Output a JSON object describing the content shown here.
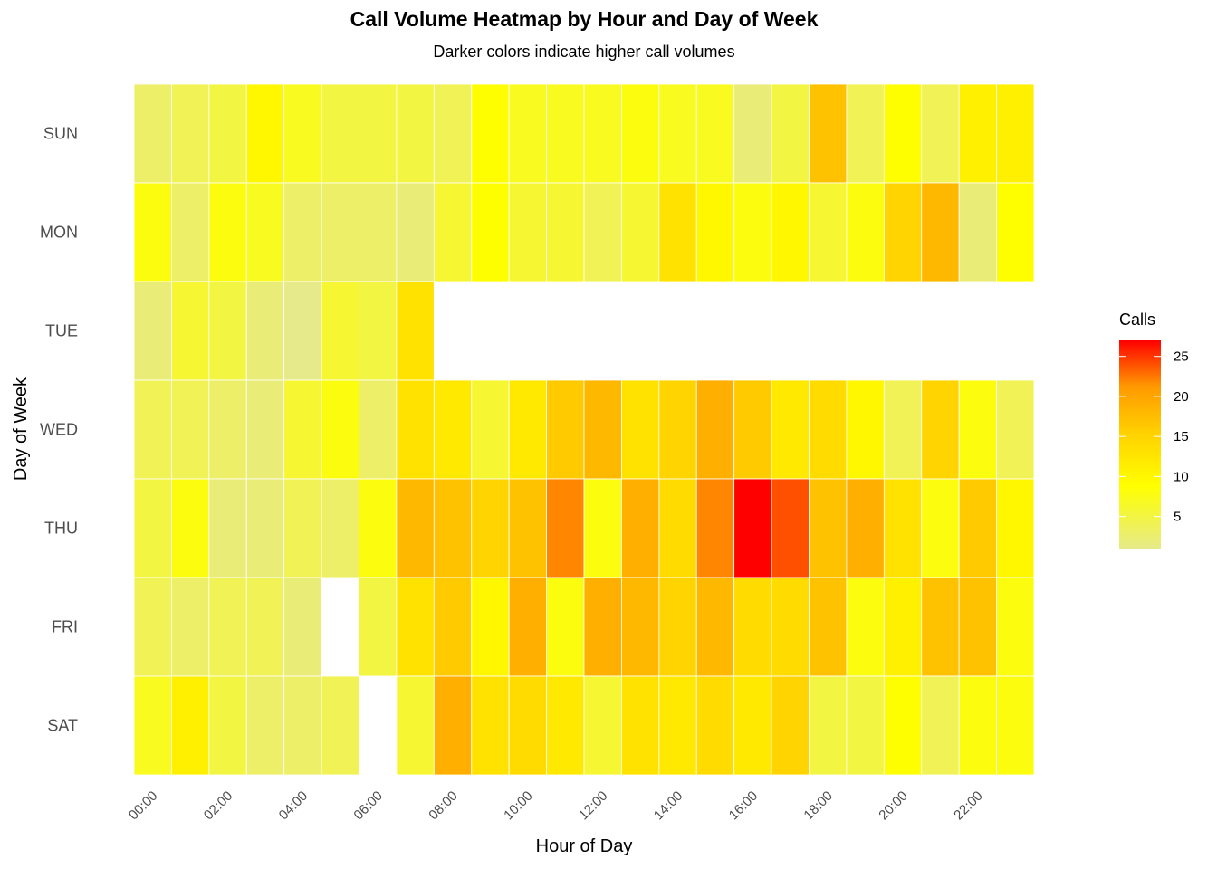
{
  "chart_data": {
    "type": "heatmap",
    "title": "Call Volume Heatmap by Hour and Day of Week",
    "subtitle": "Darker colors indicate higher call volumes",
    "xlabel": "Hour of Day",
    "ylabel": "Day of Week",
    "x_categories": [
      "00:00",
      "01:00",
      "02:00",
      "03:00",
      "04:00",
      "05:00",
      "06:00",
      "07:00",
      "08:00",
      "09:00",
      "10:00",
      "11:00",
      "12:00",
      "13:00",
      "14:00",
      "15:00",
      "16:00",
      "17:00",
      "18:00",
      "19:00",
      "20:00",
      "21:00",
      "22:00",
      "23:00"
    ],
    "x_tick_labels": [
      "00:00",
      "02:00",
      "04:00",
      "06:00",
      "08:00",
      "10:00",
      "12:00",
      "14:00",
      "16:00",
      "18:00",
      "20:00",
      "22:00"
    ],
    "y_categories": [
      "SUN",
      "MON",
      "TUE",
      "WED",
      "THU",
      "FRI",
      "SAT"
    ],
    "values": [
      [
        3,
        4,
        5,
        10,
        7,
        5,
        5,
        5,
        4,
        9,
        7,
        7,
        7,
        8,
        7,
        7,
        2,
        5,
        17,
        4,
        9,
        4,
        11,
        11
      ],
      [
        8,
        3,
        8,
        7,
        3,
        3,
        3,
        2,
        6,
        9,
        6,
        6,
        4,
        6,
        13,
        10,
        8,
        10,
        6,
        8,
        15,
        18,
        2,
        9
      ],
      [
        2,
        6,
        5,
        2,
        1,
        6,
        5,
        13,
        null,
        null,
        null,
        null,
        null,
        null,
        null,
        null,
        null,
        null,
        null,
        null,
        null,
        null,
        null,
        null
      ],
      [
        4,
        4,
        3,
        2,
        6,
        8,
        3,
        13,
        12,
        6,
        12,
        16,
        18,
        13,
        15,
        19,
        16,
        12,
        14,
        10,
        4,
        15,
        8,
        4
      ],
      [
        5,
        8,
        2,
        2,
        4,
        3,
        8,
        18,
        17,
        15,
        17,
        22,
        8,
        19,
        14,
        22,
        27,
        24,
        17,
        19,
        13,
        8,
        16,
        10
      ],
      [
        4,
        3,
        4,
        4,
        2,
        null,
        5,
        13,
        16,
        10,
        19,
        8,
        19,
        18,
        15,
        18,
        14,
        14,
        17,
        8,
        11,
        17,
        17,
        8
      ],
      [
        7,
        11,
        5,
        3,
        3,
        4,
        null,
        6,
        19,
        13,
        14,
        12,
        6,
        13,
        12,
        14,
        12,
        15,
        5,
        5,
        9,
        4,
        8,
        8
      ]
    ],
    "legend": {
      "title": "Calls",
      "min": 1,
      "max": 27,
      "ticks": [
        5,
        10,
        15,
        20,
        25
      ],
      "colors": [
        "#e6ea8a",
        "#ffff00",
        "#ffd200",
        "#ff9900",
        "#ff0000"
      ],
      "placement": "right"
    }
  }
}
